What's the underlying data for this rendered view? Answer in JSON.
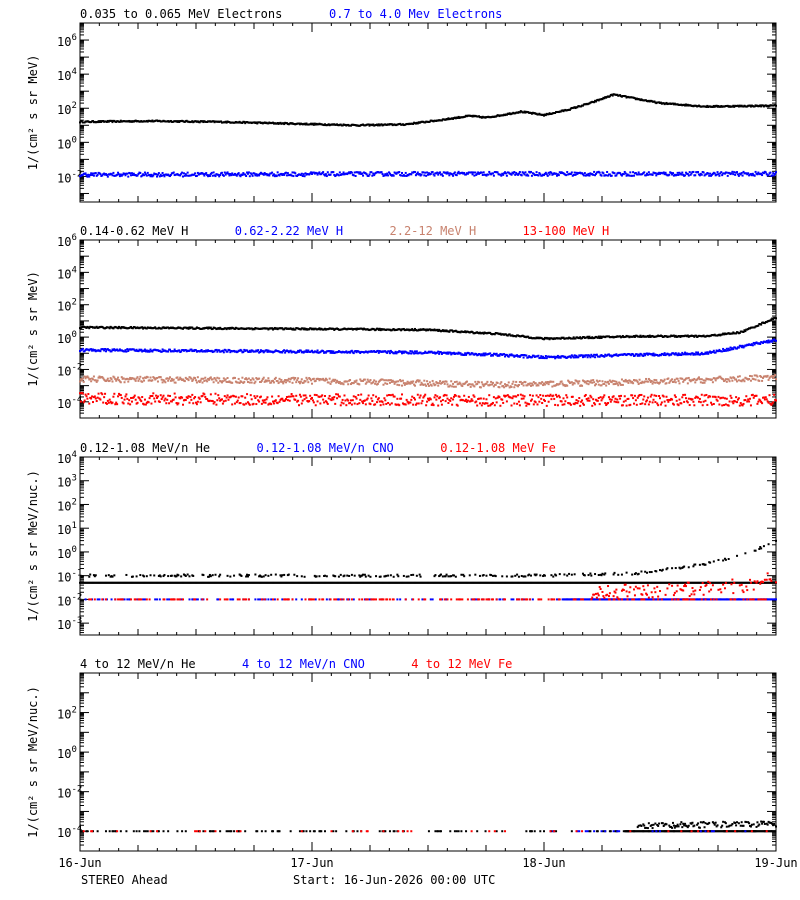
{
  "footer": {
    "spacecraft": "STEREO Ahead",
    "start": "Start: 16-Jun-2026 00:00 UTC"
  },
  "x_axis": {
    "tick_labels": [
      "16-Jun",
      "17-Jun",
      "18-Jun",
      "19-Jun"
    ],
    "range_days": [
      0,
      3
    ]
  },
  "colors": {
    "black": "#000000",
    "blue": "#0000ff",
    "tan": "#c8826e",
    "red": "#ff0000"
  },
  "chart_data": [
    {
      "type": "scatter",
      "ylabel": "1/(cm² s sr MeV)",
      "y_scale": "log",
      "ylim_exp": [
        -3.5,
        7
      ],
      "y_ticks": [
        {
          "exp": 6,
          "label": "10",
          "sup": "6"
        },
        {
          "exp": 4,
          "label": "10",
          "sup": "4"
        },
        {
          "exp": 2,
          "label": "10",
          "sup": "2"
        },
        {
          "exp": 0,
          "label": "10",
          "sup": "0"
        },
        {
          "exp": -2,
          "label": "10",
          "sup": "-2"
        }
      ],
      "legend": [
        {
          "label": "0.035 to 0.065 MeV Electrons",
          "color": "#000000"
        },
        {
          "label": "0.7 to 4.0 Mev Electrons",
          "color": "#0000ff"
        }
      ],
      "series": [
        {
          "name": "0.035 to 0.065 MeV Electrons",
          "color": "#000000",
          "jitter": 0.04,
          "continuous": true,
          "x": [
            0,
            0.3,
            0.6,
            0.9,
            1.2,
            1.4,
            1.55,
            1.68,
            1.75,
            1.82,
            1.9,
            2.0,
            2.1,
            2.2,
            2.3,
            2.5,
            2.7,
            3.0
          ],
          "y_exp": [
            1.2,
            1.25,
            1.2,
            1.1,
            1.0,
            1.05,
            1.3,
            1.55,
            1.45,
            1.6,
            1.8,
            1.6,
            1.9,
            2.3,
            2.8,
            2.3,
            2.1,
            2.15
          ]
        },
        {
          "name": "0.7 to 4.0 Mev Electrons",
          "color": "#0000ff",
          "jitter": 0.12,
          "continuous": true,
          "x": [
            0,
            1.5,
            3.0
          ],
          "y_exp": [
            -1.9,
            -1.85,
            -1.85
          ]
        }
      ]
    },
    {
      "type": "scatter",
      "ylabel": "1/(cm² s sr MeV)",
      "y_scale": "log",
      "ylim_exp": [
        -5,
        6
      ],
      "y_ticks": [
        {
          "exp": 6,
          "label": "10",
          "sup": "6"
        },
        {
          "exp": 4,
          "label": "10",
          "sup": "4"
        },
        {
          "exp": 2,
          "label": "10",
          "sup": "2"
        },
        {
          "exp": 0,
          "label": "10",
          "sup": "0"
        },
        {
          "exp": -2,
          "label": "10",
          "sup": "-2"
        },
        {
          "exp": -4,
          "label": "10",
          "sup": "-4"
        }
      ],
      "legend": [
        {
          "label": "0.14-0.62 MeV H",
          "color": "#000000"
        },
        {
          "label": "0.62-2.22 MeV H",
          "color": "#0000ff"
        },
        {
          "label": "2.2-12 MeV H",
          "color": "#c8826e"
        },
        {
          "label": "13-100 MeV H",
          "color": "#ff0000"
        }
      ],
      "series": [
        {
          "name": "0.14-0.62 MeV H",
          "color": "#000000",
          "jitter": 0.05,
          "continuous": true,
          "x": [
            0,
            0.5,
            1.0,
            1.5,
            1.8,
            2.0,
            2.4,
            2.7,
            2.85,
            2.95,
            3.0
          ],
          "y_exp": [
            0.6,
            0.55,
            0.5,
            0.45,
            0.2,
            -0.1,
            0.05,
            0.05,
            0.3,
            0.9,
            1.2
          ]
        },
        {
          "name": "0.62-2.22 MeV H",
          "color": "#0000ff",
          "jitter": 0.08,
          "continuous": true,
          "x": [
            0,
            0.5,
            1.0,
            1.5,
            1.8,
            2.0,
            2.4,
            2.7,
            2.85,
            2.95,
            3.0
          ],
          "y_exp": [
            -0.8,
            -0.85,
            -0.9,
            -0.95,
            -1.1,
            -1.25,
            -1.1,
            -1.0,
            -0.6,
            -0.3,
            -0.2
          ]
        },
        {
          "name": "2.2-12 MeV H",
          "color": "#c8826e",
          "jitter": 0.18,
          "continuous": true,
          "x": [
            0,
            1.0,
            1.8,
            2.5,
            3.0
          ],
          "y_exp": [
            -2.6,
            -2.7,
            -2.95,
            -2.75,
            -2.5
          ]
        },
        {
          "name": "13-100 MeV H",
          "color": "#ff0000",
          "jitter": 0.35,
          "continuous": true,
          "x": [
            0,
            1.5,
            3.0
          ],
          "y_exp": [
            -3.8,
            -3.9,
            -3.9
          ]
        }
      ]
    },
    {
      "type": "scatter",
      "ylabel": "1/(cm² s sr MeV/nuc.)",
      "y_scale": "log",
      "ylim_exp": [
        -3.5,
        4
      ],
      "y_ticks": [
        {
          "exp": 4,
          "label": "10",
          "sup": "4"
        },
        {
          "exp": 3,
          "label": "10",
          "sup": "3"
        },
        {
          "exp": 2,
          "label": "10",
          "sup": "2"
        },
        {
          "exp": 1,
          "label": "10",
          "sup": "1"
        },
        {
          "exp": 0,
          "label": "10",
          "sup": "0"
        },
        {
          "exp": -1,
          "label": "10",
          "sup": "-1"
        },
        {
          "exp": -2,
          "label": "10",
          "sup": "-2"
        },
        {
          "exp": -3,
          "label": "10",
          "sup": "-3"
        }
      ],
      "legend": [
        {
          "label": "0.12-1.08 MeV/n He",
          "color": "#000000"
        },
        {
          "label": "0.12-1.08 MeV/n CNO",
          "color": "#0000ff"
        },
        {
          "label": "0.12-1.08 MeV Fe",
          "color": "#ff0000"
        }
      ],
      "series": [
        {
          "name": "0.12-1.08 MeV/n He",
          "color": "#000000",
          "jitter": 0.0,
          "continuous": true,
          "x": [
            0,
            3.0
          ],
          "y_exp": [
            -1.3,
            -1.3
          ]
        },
        {
          "name": "0.12-1.08 MeV/n He",
          "color": "#000000",
          "jitter": 0.05,
          "continuous": false,
          "density": 0.35,
          "x": [
            0,
            2.0,
            2.4,
            2.7,
            2.9,
            3.0
          ],
          "y_exp": [
            -1.0,
            -1.0,
            -0.9,
            -0.5,
            0.0,
            0.5
          ]
        },
        {
          "name": "0.12-1.08 MeV/n CNO",
          "color": "#0000ff",
          "jitter": 0.0,
          "continuous": false,
          "density": 0.2,
          "x": [
            0,
            2.0,
            3.0
          ],
          "y_exp": [
            -2.0,
            -2.0,
            -2.0
          ]
        },
        {
          "name": "0.12-1.08 MeV/n CNO",
          "color": "#0000ff",
          "jitter": 0.0,
          "continuous": true,
          "x": [
            2.08,
            3.0
          ],
          "y_exp": [
            -2.0,
            -2.0
          ]
        },
        {
          "name": "0.12-1.08 MeV Fe",
          "color": "#ff0000",
          "jitter": 0.0,
          "continuous": false,
          "density": 0.25,
          "x": [
            0,
            2.0,
            3.0
          ],
          "y_exp": [
            -2.0,
            -2.0,
            -2.0
          ]
        },
        {
          "name": "0.12-1.08 MeV Fe",
          "color": "#ff0000",
          "jitter": 0.3,
          "continuous": false,
          "density": 0.6,
          "x": [
            2.2,
            2.6,
            2.9,
            3.0
          ],
          "y_exp": [
            -1.7,
            -1.6,
            -1.4,
            -1.0
          ]
        }
      ]
    },
    {
      "type": "scatter",
      "ylabel": "1/(cm² s sr MeV/nuc.)",
      "y_scale": "log",
      "ylim_exp": [
        -5,
        4
      ],
      "y_ticks": [
        {
          "exp": 2,
          "label": "10",
          "sup": "2"
        },
        {
          "exp": 0,
          "label": "10",
          "sup": "0"
        },
        {
          "exp": -2,
          "label": "10",
          "sup": "-2"
        },
        {
          "exp": -4,
          "label": "10",
          "sup": "-4"
        }
      ],
      "legend": [
        {
          "label": "4 to 12 MeV/n He",
          "color": "#000000"
        },
        {
          "label": "4 to 12 MeV/n CNO",
          "color": "#0000ff"
        },
        {
          "label": "4 to 12 MeV Fe",
          "color": "#ff0000"
        }
      ],
      "series": [
        {
          "name": "4 to 12 MeV/n He",
          "color": "#000000",
          "jitter": 0.0,
          "continuous": false,
          "density": 0.25,
          "x": [
            0,
            2.0,
            3.0
          ],
          "y_exp": [
            -4.0,
            -4.0,
            -4.0
          ]
        },
        {
          "name": "4 to 12 MeV/n He",
          "color": "#000000",
          "jitter": 0.0,
          "continuous": true,
          "x": [
            2.35,
            3.0
          ],
          "y_exp": [
            -4.0,
            -4.0
          ]
        },
        {
          "name": "4 to 12 MeV/n He",
          "color": "#000000",
          "jitter": 0.15,
          "continuous": false,
          "density": 0.7,
          "x": [
            2.4,
            3.0
          ],
          "y_exp": [
            -3.7,
            -3.65
          ]
        },
        {
          "name": "4 to 12 MeV/n CNO",
          "color": "#0000ff",
          "jitter": 0.0,
          "continuous": false,
          "density": 0.05,
          "x": [
            2.0,
            3.0
          ],
          "y_exp": [
            -4.0,
            -4.0
          ]
        },
        {
          "name": "4 to 12 MeV Fe",
          "color": "#ff0000",
          "jitter": 0.0,
          "continuous": false,
          "density": 0.05,
          "x": [
            0,
            3.0
          ],
          "y_exp": [
            -4.0,
            -4.0
          ]
        }
      ]
    }
  ]
}
